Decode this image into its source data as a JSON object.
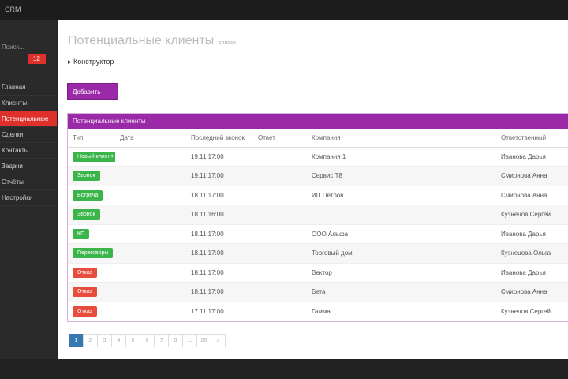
{
  "topbar": {
    "brand": "CRM"
  },
  "sidebar": {
    "search": "Поиск...",
    "badge": "12",
    "active": 2,
    "items": [
      "Главная",
      "Клиенты",
      "Потенциальные",
      "Сделки",
      "Контакты",
      "Задачи",
      "Отчёты",
      "Настройки"
    ]
  },
  "page": {
    "title": "Потенциальные клиенты",
    "subtitle": "список",
    "breadcrumb": "Конструктор",
    "add_button": "Добавить"
  },
  "table": {
    "title": "Потенциальные клиенты",
    "columns": [
      "Тип",
      "Дата",
      "Последний звонок",
      "Ответ",
      "Компания",
      "Ответственный"
    ],
    "rows": [
      {
        "status": "Новый клиент",
        "tone": "green",
        "call": "19.11 17:00",
        "company": "Компания 1",
        "manager": "Иванова Дарья"
      },
      {
        "status": "Звонок",
        "tone": "green",
        "call": "19.11 17:00",
        "company": "Сервис Т8",
        "manager": "Смирнова Анна"
      },
      {
        "status": "Встреча",
        "tone": "green",
        "call": "18.11 17:00",
        "company": "ИП Петров",
        "manager": "Смирнова Анна"
      },
      {
        "status": "Звонок",
        "tone": "green",
        "call": "18.11 16:00",
        "manager": "Кузнецов Сергей"
      },
      {
        "status": "КП",
        "tone": "green",
        "call": "18.11 17:00",
        "company": "ООО Альфа",
        "manager": "Иванова Дарья"
      },
      {
        "status": "Переговоры",
        "tone": "green",
        "call": "18.11 17:00",
        "company": "Торговый дом",
        "manager": "Кузнецова Ольга"
      },
      {
        "status": "Отказ",
        "tone": "red",
        "call": "18.11 17:00",
        "company": "Вектор",
        "manager": "Иванова Дарья"
      },
      {
        "status": "Отказ",
        "tone": "red",
        "call": "18.11 17:00",
        "company": "Бета",
        "manager": "Смирнова Анна"
      },
      {
        "status": "Отказ",
        "tone": "red",
        "call": "17.11 17:00",
        "company": "Гамма",
        "manager": "Кузнецов Сергей"
      }
    ]
  },
  "pagination": [
    "1",
    "2",
    "3",
    "4",
    "5",
    "6",
    "7",
    "8",
    "...",
    "20",
    "»"
  ]
}
